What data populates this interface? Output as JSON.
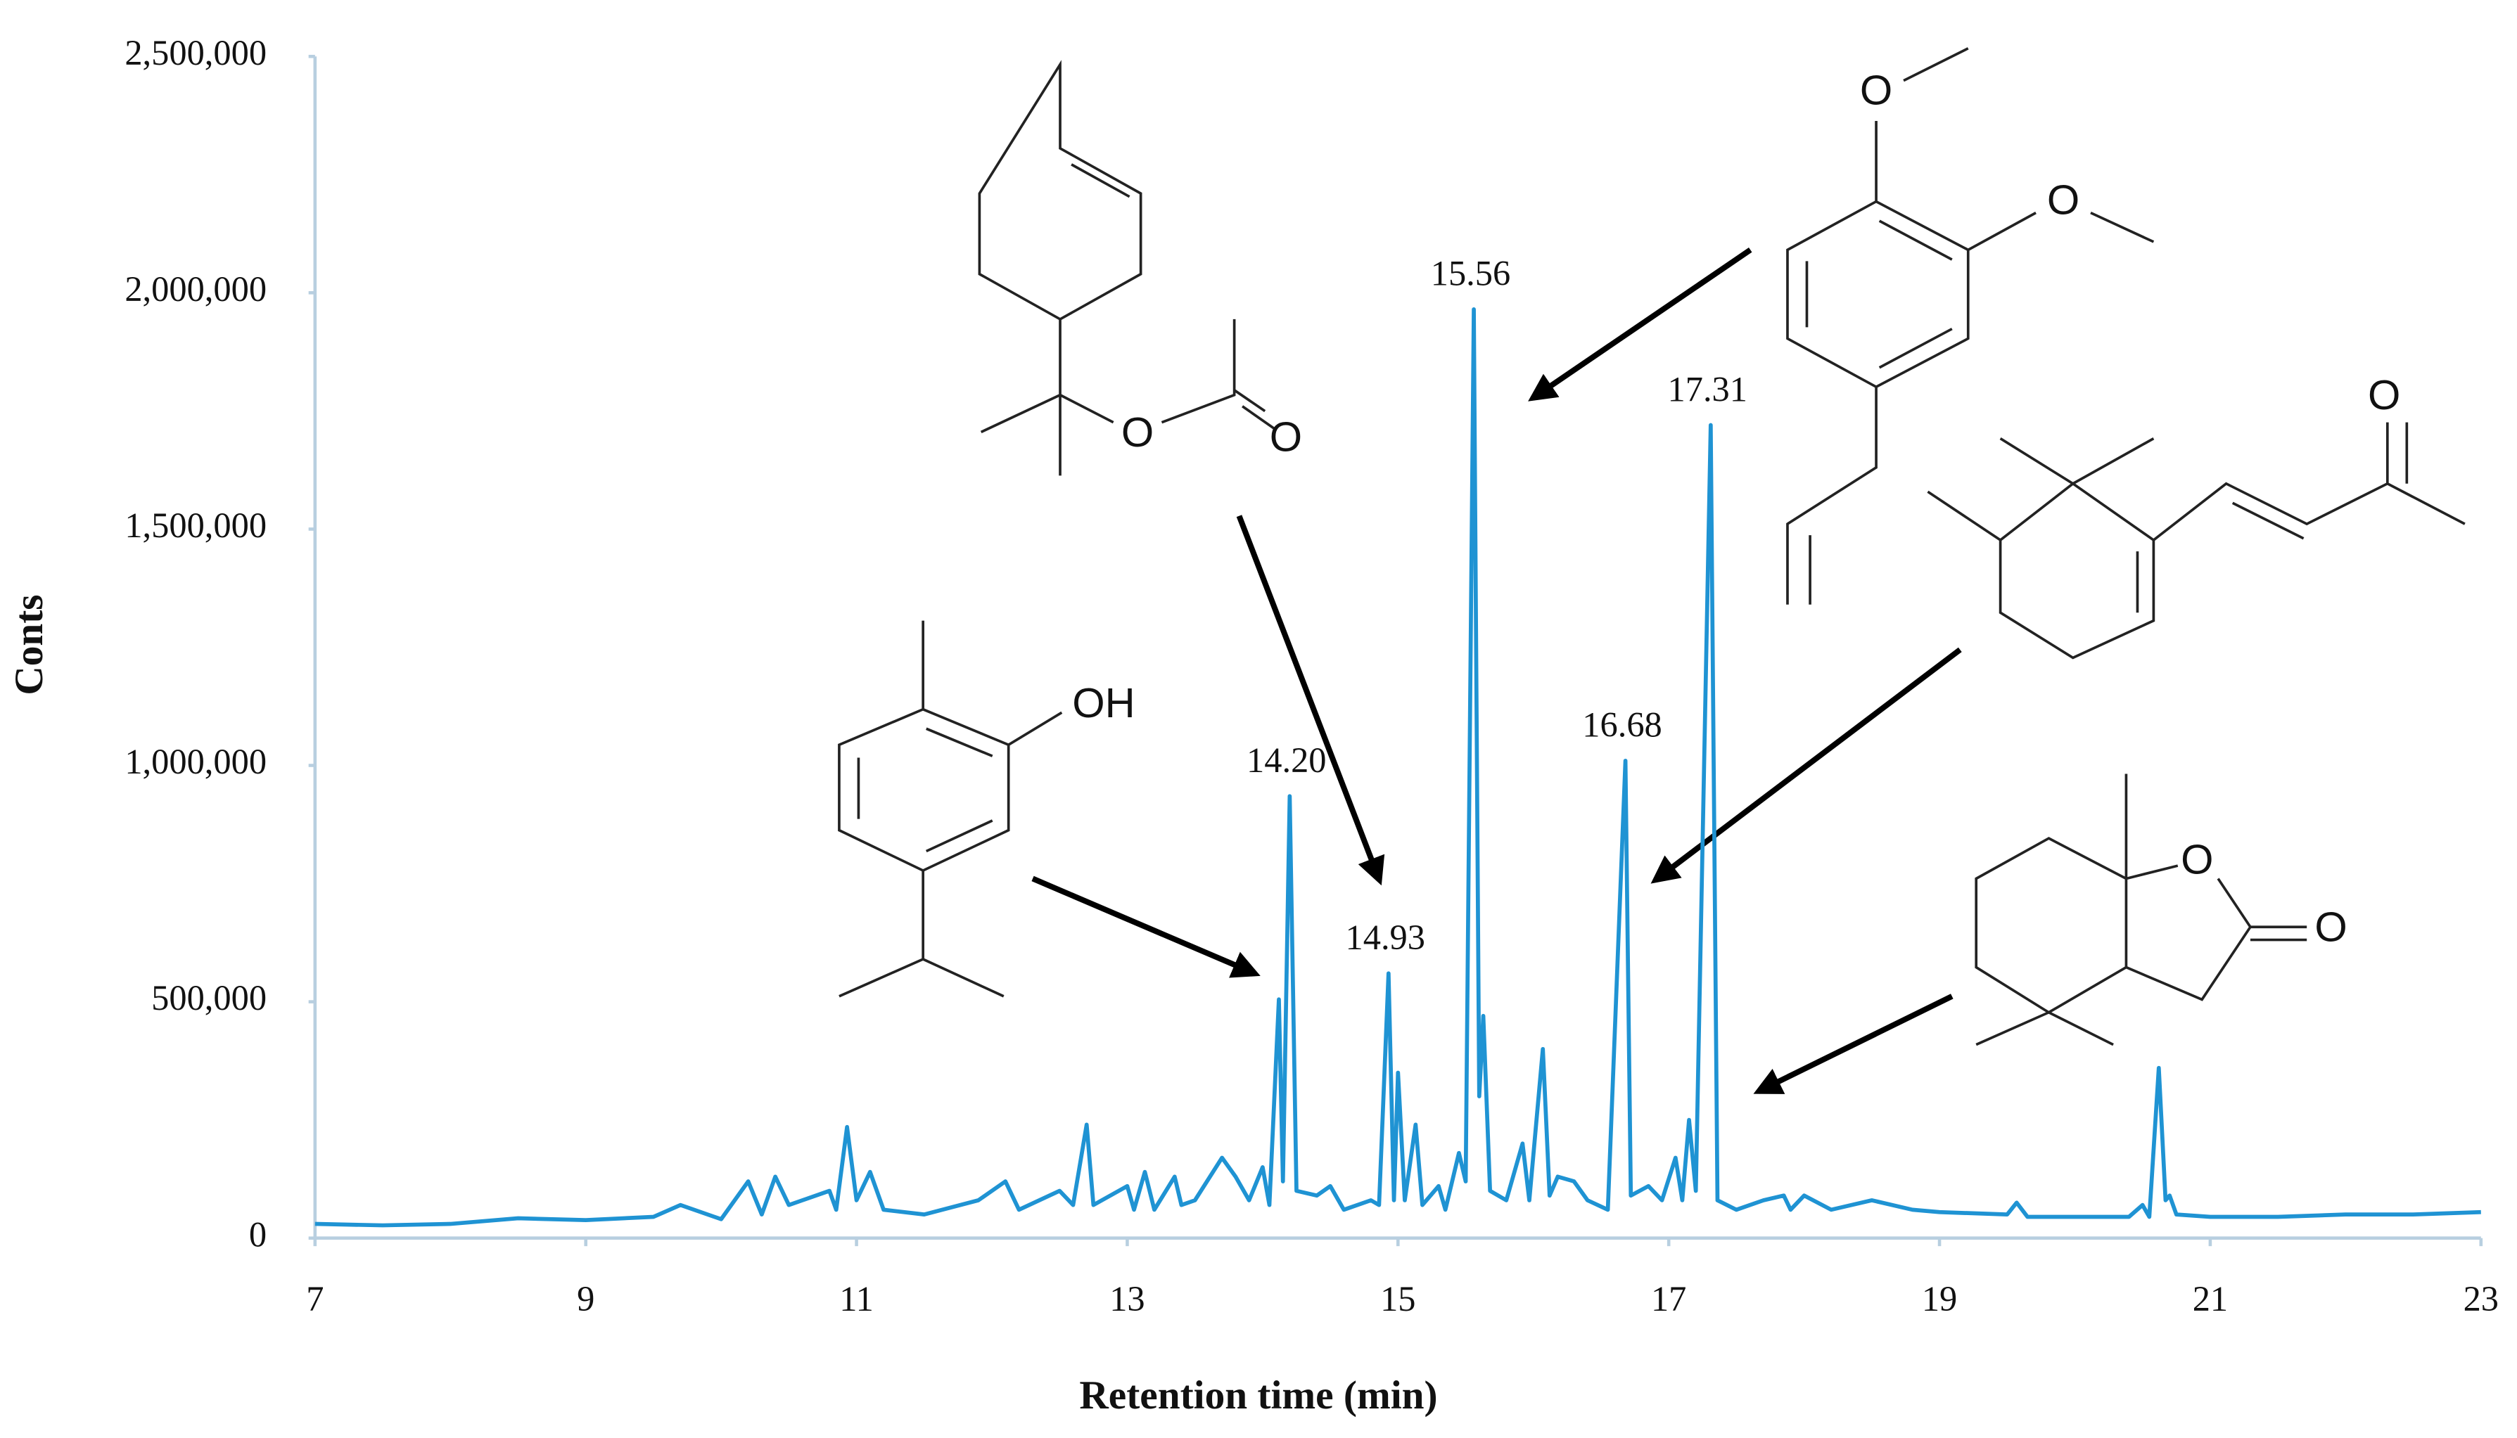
{
  "chart_data": {
    "type": "line",
    "x_label": "Retention time (min)",
    "y_label": "Conts",
    "color": "#1f93d3",
    "xlim": [
      7,
      23
    ],
    "xticks": [
      7,
      9,
      11,
      13,
      15,
      17,
      19,
      21,
      23
    ],
    "ylim": [
      0,
      2500000
    ],
    "yticks": [
      0,
      {
        "value": 500000,
        "label": "500,000"
      },
      {
        "value": 1000000,
        "label": "1,000,000"
      },
      {
        "value": 1500000,
        "label": "1,500,000"
      },
      {
        "value": 2000000,
        "label": "2,000,000"
      },
      {
        "value": 2500000,
        "label": "2,500,000"
      }
    ],
    "x": [
      7.0,
      7.5,
      8.0,
      8.5,
      9.0,
      9.5,
      9.7,
      10.0,
      10.2,
      10.3,
      10.4,
      10.5,
      10.8,
      10.85,
      10.93,
      11.0,
      11.1,
      11.2,
      11.5,
      11.9,
      12.1,
      12.2,
      12.5,
      12.6,
      12.7,
      12.75,
      13.0,
      13.05,
      13.13,
      13.2,
      13.35,
      13.4,
      13.5,
      13.7,
      13.8,
      13.9,
      14.0,
      14.05,
      14.12,
      14.15,
      14.2,
      14.25,
      14.4,
      14.5,
      14.6,
      14.8,
      14.86,
      14.93,
      14.97,
      15.0,
      15.05,
      15.13,
      15.18,
      15.3,
      15.35,
      15.45,
      15.5,
      15.56,
      15.6,
      15.63,
      15.68,
      15.8,
      15.92,
      15.97,
      16.07,
      16.12,
      16.18,
      16.3,
      16.4,
      16.55,
      16.68,
      16.72,
      16.85,
      16.95,
      17.05,
      17.1,
      17.15,
      17.2,
      17.31,
      17.36,
      17.5,
      17.7,
      17.85,
      17.9,
      18.0,
      18.2,
      18.5,
      18.8,
      19.0,
      19.5,
      19.57,
      19.65,
      20.0,
      20.4,
      20.5,
      20.55,
      20.62,
      20.67,
      20.7,
      20.75,
      21.0,
      21.5,
      22.0,
      22.5,
      23.0
    ],
    "values": [
      30000,
      27000,
      30000,
      42000,
      38000,
      45000,
      70000,
      40000,
      120000,
      50000,
      130000,
      70000,
      100000,
      60000,
      235000,
      80000,
      140000,
      60000,
      50000,
      80000,
      120000,
      60000,
      100000,
      70000,
      240000,
      70000,
      110000,
      60000,
      140000,
      60000,
      130000,
      70000,
      80000,
      170000,
      130000,
      80000,
      150000,
      70000,
      505000,
      120000,
      935000,
      100000,
      90000,
      110000,
      60000,
      80000,
      70000,
      560000,
      80000,
      350000,
      80000,
      240000,
      70000,
      110000,
      60000,
      180000,
      120000,
      1965000,
      300000,
      470000,
      100000,
      80000,
      200000,
      80000,
      400000,
      90000,
      130000,
      120000,
      80000,
      60000,
      1010000,
      90000,
      110000,
      80000,
      170000,
      80000,
      250000,
      100000,
      1720000,
      80000,
      60000,
      80000,
      90000,
      60000,
      90000,
      60000,
      80000,
      60000,
      55000,
      50000,
      75000,
      45000,
      45000,
      45000,
      70000,
      45000,
      360000,
      80000,
      90000,
      50000,
      45000,
      45000,
      50000,
      50000,
      55000
    ],
    "peak_labels": [
      {
        "value": 14.2,
        "label": "14.20"
      },
      {
        "value": 14.93,
        "label": "14.93"
      },
      {
        "value": 15.56,
        "label": "15.56"
      },
      {
        "value": 16.68,
        "label": "16.68"
      },
      {
        "value": 17.31,
        "label": "17.31"
      }
    ],
    "structures": [
      {
        "atoms": [
          "O",
          "O"
        ]
      },
      {
        "atoms": [
          "O",
          "O"
        ]
      },
      {
        "atoms": [
          "O"
        ]
      },
      {
        "atoms": [
          "OH"
        ]
      },
      {
        "atoms": [
          "O",
          "O"
        ]
      }
    ]
  }
}
